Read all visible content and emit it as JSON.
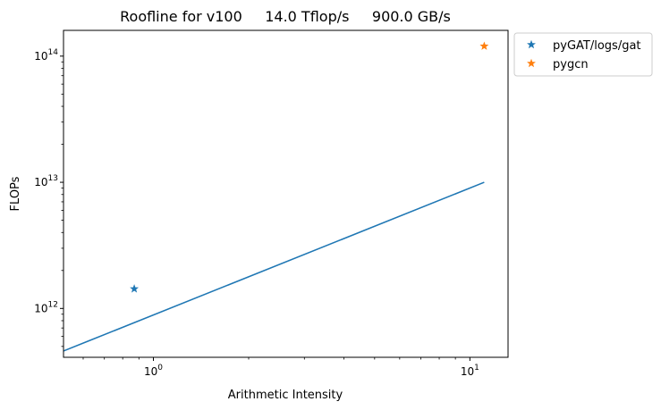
{
  "chart_data": {
    "type": "scatter",
    "title": "Roofline for v100     14.0 Tflop/s     900.0 GB/s",
    "xlabel": "Arithmetic Intensity",
    "ylabel": "FLOPs",
    "xscale": "log",
    "yscale": "log",
    "xlim": [
      0.52,
      13.2
    ],
    "ylim": [
      410000000000.0,
      160000000000000.0
    ],
    "grid": false,
    "legend_position": "outside top-right",
    "x_ticks": [
      {
        "value": 1,
        "base": "10",
        "exp": "0"
      },
      {
        "value": 10,
        "base": "10",
        "exp": "1"
      }
    ],
    "y_ticks": [
      {
        "value": 1000000000000.0,
        "base": "10",
        "exp": "12"
      },
      {
        "value": 10000000000000.0,
        "base": "10",
        "exp": "13"
      },
      {
        "value": 100000000000000.0,
        "base": "10",
        "exp": "14"
      }
    ],
    "roofline": {
      "color": "#1f77b4",
      "points": [
        [
          0.52,
          460000000000.0
        ],
        [
          11.1,
          10000000000000.0
        ]
      ]
    },
    "series": [
      {
        "name": "pyGAT/logs/gat",
        "marker": "star",
        "color": "#1f77b4",
        "points": [
          [
            0.87,
            1430000000000.0
          ]
        ]
      },
      {
        "name": "pygcn",
        "marker": "star",
        "color": "#ff7f0e",
        "points": [
          [
            11.1,
            120000000000000.0
          ]
        ]
      }
    ]
  }
}
